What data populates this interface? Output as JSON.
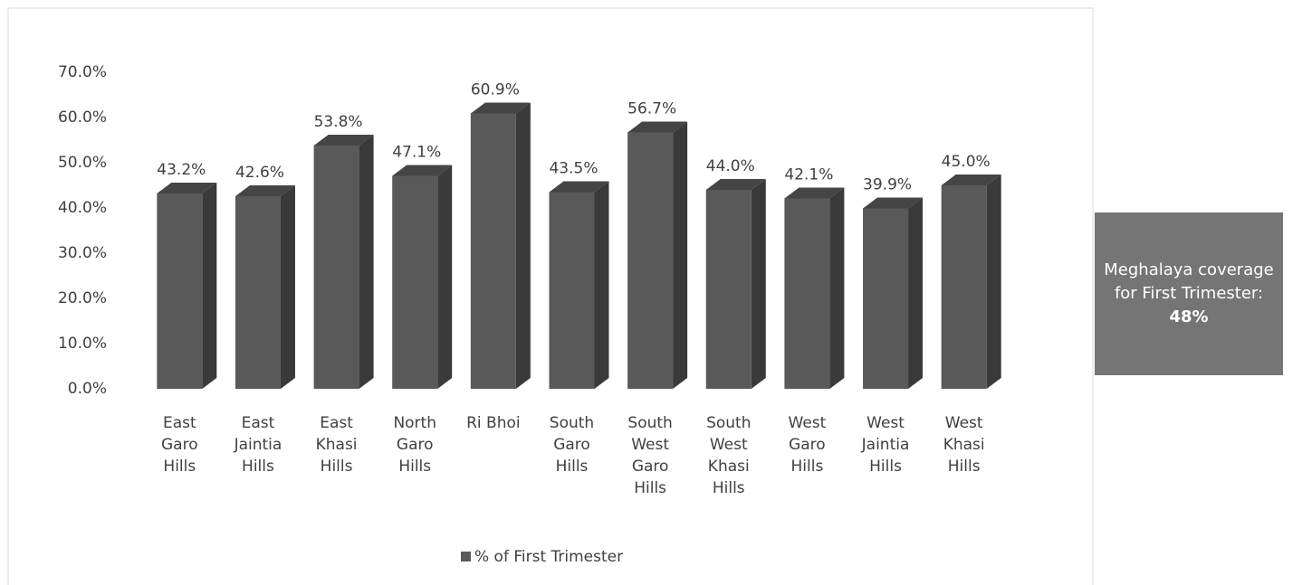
{
  "chart_data": {
    "type": "bar3d",
    "categories": [
      "East Garo Hills",
      "East Jaintia Hills",
      "East Khasi Hills",
      "North Garo Hills",
      "Ri Bhoi",
      "South Garo Hills",
      "South West Garo Hills",
      "South West Khasi Hills",
      "West Garo Hills",
      "West Jaintia Hills",
      "West Khasi Hills"
    ],
    "series": [
      {
        "name": "% of First Trimester",
        "color": "#595959",
        "values": [
          43.2,
          42.6,
          53.8,
          47.1,
          60.9,
          43.5,
          56.7,
          44.0,
          42.1,
          39.9,
          45.0
        ],
        "value_labels": [
          "43.2%",
          "42.6%",
          "53.8%",
          "47.1%",
          "60.9%",
          "43.5%",
          "56.7%",
          "44.0%",
          "42.1%",
          "39.9%",
          "45.0%"
        ]
      }
    ],
    "ylim": [
      0,
      70
    ],
    "yticks": [
      {
        "value": 0,
        "label": "0.0%"
      },
      {
        "value": 10,
        "label": "10.0%"
      },
      {
        "value": 20,
        "label": "20.0%"
      },
      {
        "value": 30,
        "label": "30.0%"
      },
      {
        "value": 40,
        "label": "40.0%"
      },
      {
        "value": 50,
        "label": "50.0%"
      },
      {
        "value": 60,
        "label": "60.0%"
      },
      {
        "value": 70,
        "label": "70.0%"
      }
    ],
    "grid": false,
    "legend": "bottom",
    "annotation": {
      "text": "Meghalaya coverage for First Trimester:",
      "value": "48%"
    }
  }
}
